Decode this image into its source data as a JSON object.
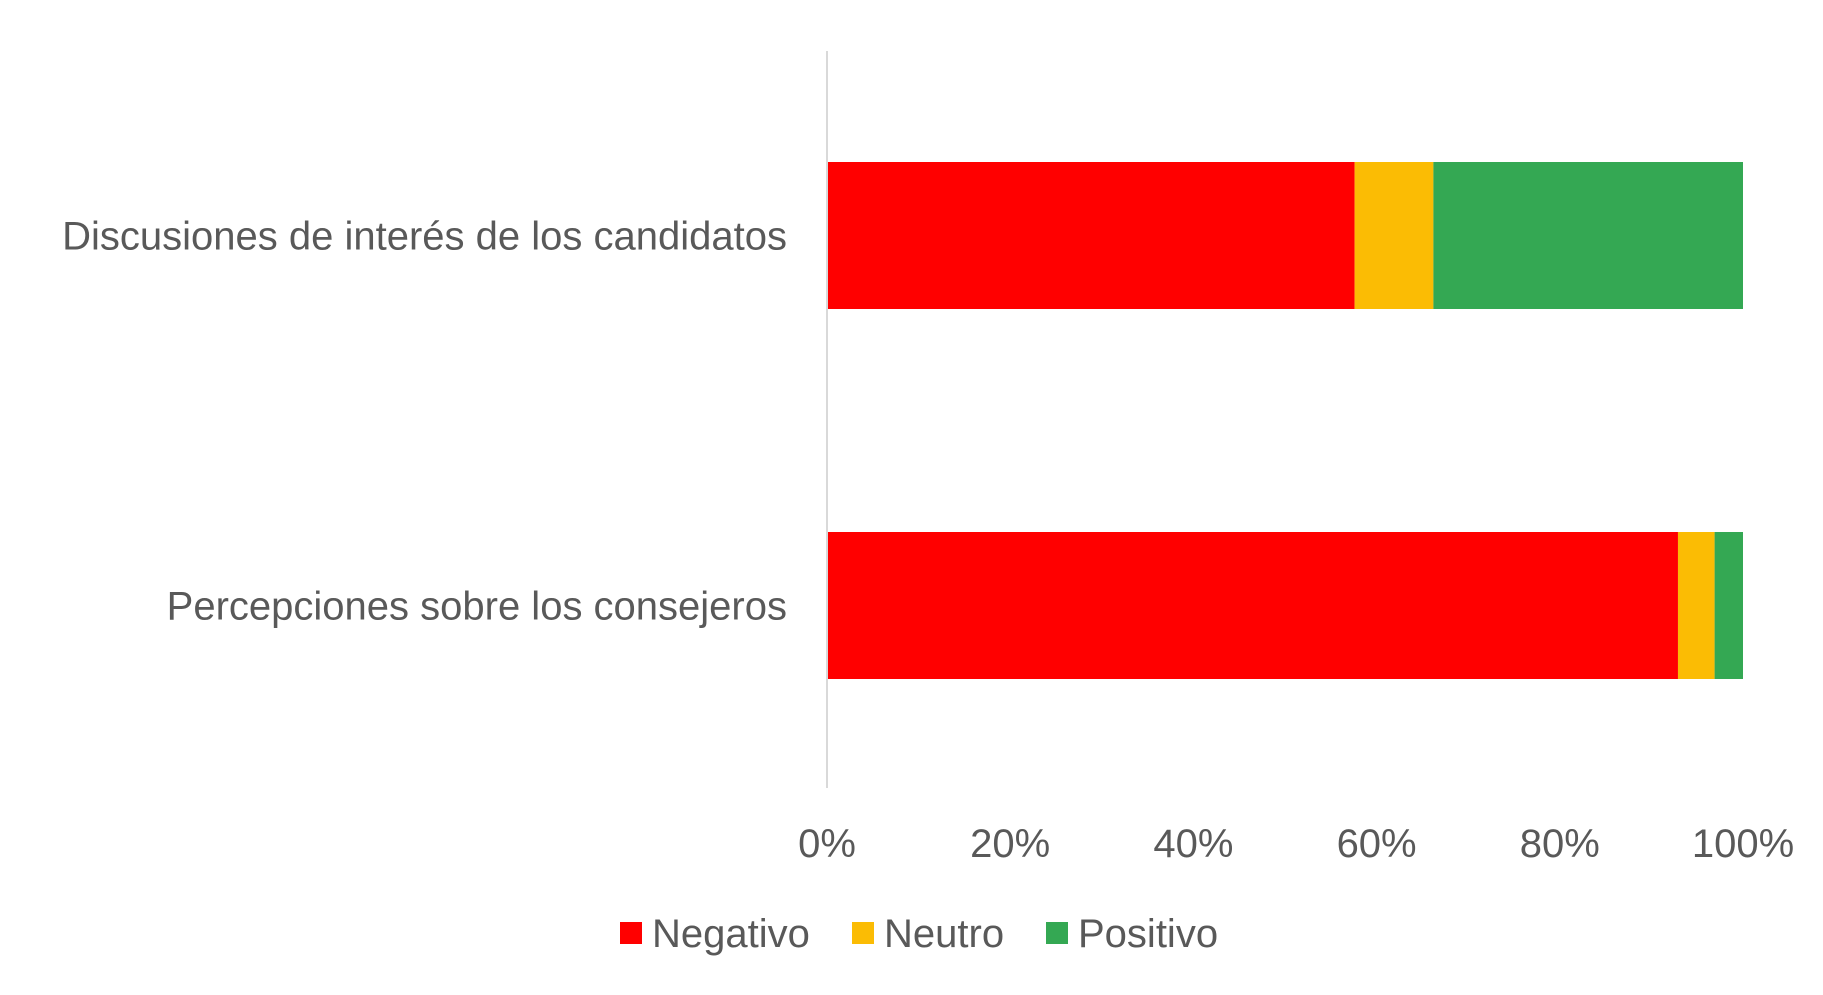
{
  "chart_data": {
    "type": "bar",
    "orientation": "horizontal",
    "stacked": "percent",
    "title": "",
    "xlabel": "",
    "ylabel": "",
    "categories": [
      "Discusiones de interés de los candidatos",
      "Percepciones sobre los consejeros"
    ],
    "series": [
      {
        "name": "Negativo",
        "color": "#ff0000",
        "values": [
          57.6,
          92.9
        ]
      },
      {
        "name": "Neutro",
        "color": "#fbbc04",
        "values": [
          8.6,
          4.0
        ]
      },
      {
        "name": "Positivo",
        "color": "#34a853",
        "values": [
          33.8,
          3.1
        ]
      }
    ],
    "xlim": [
      0,
      100
    ],
    "xticks": [
      "0%",
      "20%",
      "40%",
      "60%",
      "80%",
      "100%"
    ],
    "grid": false,
    "legend_position": "bottom"
  }
}
